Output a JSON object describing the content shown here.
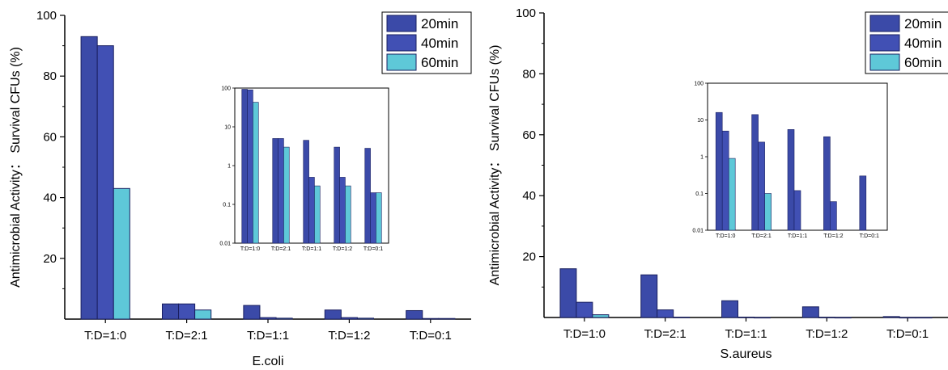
{
  "colors": {
    "20min": "#3b4aa8",
    "40min": "#4150b4",
    "60min": "#5ec8d8"
  },
  "chart_data": [
    {
      "type": "bar",
      "ylabel": "Antimicrobial Activity： Survival CFUs (%)",
      "xlabel": "E.coli",
      "categories": [
        "T:D=1:0",
        "T:D=2:1",
        "T:D=1:1",
        "T:D=1:2",
        "T:D=0:1"
      ],
      "ylim": [
        0,
        100
      ],
      "yticks": [
        20,
        40,
        60,
        80,
        100
      ],
      "legend": "top-right",
      "series": [
        {
          "name": "20min",
          "values": [
            93,
            5,
            4.5,
            3,
            2.8
          ]
        },
        {
          "name": "40min",
          "values": [
            90,
            5,
            0.5,
            0.5,
            0.2
          ]
        },
        {
          "name": "60min",
          "values": [
            43,
            3,
            0.3,
            0.3,
            0.2
          ]
        }
      ],
      "inset": {
        "scale": "log",
        "ylim": [
          0.01,
          100
        ],
        "yticks": [
          "0.01",
          "0.1",
          "1",
          "10",
          "100"
        ],
        "categories": [
          "T:D=1:0",
          "T:D=2:1",
          "T:D=1:1",
          "T:D=1:2",
          "T:D=0:1"
        ]
      }
    },
    {
      "type": "bar",
      "ylabel": "Antimicrobial Activity： Survival CFUs (%)",
      "xlabel": "S.aureus",
      "categories": [
        "T:D=1:0",
        "T:D=2:1",
        "T:D=1:1",
        "T:D=1:2",
        "T:D=0:1"
      ],
      "ylim": [
        0,
        100
      ],
      "yticks": [
        20,
        40,
        60,
        80,
        100
      ],
      "legend": "top-right",
      "series": [
        {
          "name": "20min",
          "values": [
            16,
            14,
            5.5,
            3.5,
            0.3
          ]
        },
        {
          "name": "40min",
          "values": [
            5,
            2.5,
            0.12,
            0.06,
            0
          ]
        },
        {
          "name": "60min",
          "values": [
            0.9,
            0.1,
            0,
            0,
            0
          ]
        }
      ],
      "inset": {
        "scale": "log",
        "ylim": [
          0.01,
          100
        ],
        "yticks": [
          "0.01",
          "0.1",
          "1",
          "10",
          "100"
        ],
        "categories": [
          "T:D=1:0",
          "T:D=2:1",
          "T:D=1:1",
          "T:D=1:2",
          "T:D=0:1"
        ]
      }
    }
  ]
}
